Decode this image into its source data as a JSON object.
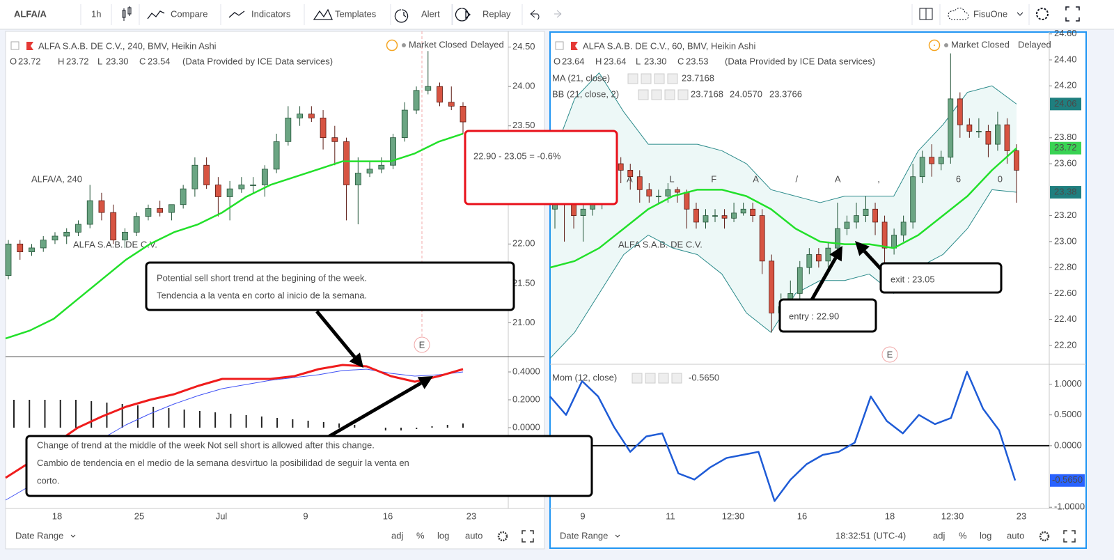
{
  "toolbar": {
    "symbol": "ALFA/A",
    "interval": "1h",
    "items": [
      "Compare",
      "Indicators",
      "Templates",
      "Alert",
      "Replay"
    ],
    "user": "FisuOne"
  },
  "left_panel": {
    "title": "ALFA S.A.B. DE C.V., 240, BMV, Heikin Ashi",
    "ohlc_labels": [
      "O",
      "H",
      "L",
      "C"
    ],
    "ohlc_values": [
      "23.72",
      "23.72",
      "23.30",
      "23.54"
    ],
    "provider": "(Data Provided by ICE Data services)",
    "status": "Market Closed",
    "delay": "Delayed",
    "watermark": "ALFA/A, 240",
    "watermark_sub": "ALFA S.A.B. DE C.V.",
    "event": "E",
    "ylim": [
      20.57,
      24.7
    ],
    "yticks": [
      {
        "value": 21,
        "label": "21.00"
      },
      {
        "value": 21.5,
        "label": "21.50"
      },
      {
        "value": 22,
        "label": "22.00"
      },
      {
        "value": 23.5,
        "label": "23.50"
      },
      {
        "value": 24,
        "label": "24.00"
      },
      {
        "value": 24.5,
        "label": "24.50"
      }
    ],
    "candles": [
      [
        21.6,
        22.05,
        21.55,
        22.0
      ],
      [
        22.0,
        22.05,
        21.8,
        21.9
      ],
      [
        21.9,
        22.0,
        21.85,
        21.95
      ],
      [
        21.95,
        22.1,
        21.9,
        22.05
      ],
      [
        22.05,
        22.15,
        22.0,
        22.1
      ],
      [
        22.1,
        22.2,
        22.0,
        22.15
      ],
      [
        22.15,
        22.3,
        22.1,
        22.25
      ],
      [
        22.25,
        22.75,
        22.2,
        22.55
      ],
      [
        22.55,
        22.65,
        22.3,
        22.4
      ],
      [
        22.4,
        22.5,
        22.0,
        22.05
      ],
      [
        22.05,
        22.2,
        21.95,
        22.15
      ],
      [
        22.15,
        22.4,
        22.1,
        22.35
      ],
      [
        22.35,
        22.5,
        22.3,
        22.45
      ],
      [
        22.45,
        22.55,
        22.35,
        22.4
      ],
      [
        22.4,
        22.5,
        22.3,
        22.5
      ],
      [
        22.5,
        22.75,
        22.45,
        22.7
      ],
      [
        22.7,
        23.1,
        22.6,
        23.0
      ],
      [
        23.0,
        23.1,
        22.7,
        22.75
      ],
      [
        22.75,
        22.85,
        22.35,
        22.6
      ],
      [
        22.6,
        22.8,
        22.3,
        22.7
      ],
      [
        22.7,
        22.85,
        22.65,
        22.75
      ],
      [
        22.75,
        22.85,
        22.65,
        22.75
      ],
      [
        22.75,
        23.0,
        22.6,
        22.95
      ],
      [
        22.95,
        23.4,
        22.9,
        23.3
      ],
      [
        23.3,
        23.75,
        23.25,
        23.6
      ],
      [
        23.6,
        23.75,
        23.5,
        23.65
      ],
      [
        23.65,
        23.75,
        23.55,
        23.6
      ],
      [
        23.6,
        23.7,
        23.2,
        23.35
      ],
      [
        23.35,
        23.5,
        23.0,
        23.3
      ],
      [
        23.3,
        23.35,
        22.3,
        22.75
      ],
      [
        22.75,
        23.1,
        22.25,
        22.9
      ],
      [
        22.9,
        23.05,
        22.85,
        22.95
      ],
      [
        22.95,
        23.1,
        22.9,
        23.0
      ],
      [
        23.0,
        23.4,
        22.95,
        23.35
      ],
      [
        23.35,
        23.8,
        23.3,
        23.7
      ],
      [
        23.7,
        24.0,
        23.65,
        23.95
      ],
      [
        23.95,
        24.45,
        23.9,
        24.0
      ],
      [
        24.0,
        24.05,
        23.75,
        23.8
      ],
      [
        23.8,
        24.0,
        23.7,
        23.75
      ],
      [
        23.75,
        23.8,
        23.4,
        23.55
      ]
    ],
    "ma": [
      20.8,
      20.9,
      21.05,
      21.3,
      21.55,
      21.8,
      22.0,
      22.15,
      22.25,
      22.4,
      22.6,
      22.75,
      22.85,
      22.95,
      23.05,
      23.05,
      23.05,
      23.15,
      23.3,
      23.4
    ],
    "lower": {
      "ylim": [
        -0.58,
        0.51
      ],
      "yticks": [
        {
          "value": 0.4,
          "label": "0.4000"
        },
        {
          "value": 0.2,
          "label": "0.2000"
        },
        {
          "value": 0,
          "label": "0.0000"
        }
      ],
      "macd": [
        -0.36,
        -0.25,
        -0.12,
        0.0,
        0.08,
        0.15,
        0.2,
        0.24,
        0.3,
        0.35,
        0.35,
        0.35,
        0.37,
        0.42,
        0.45,
        0.44,
        0.37,
        0.33,
        0.37,
        0.42
      ],
      "signal": [
        -0.52,
        -0.42,
        -0.3,
        -0.18,
        -0.08,
        0.02,
        0.1,
        0.17,
        0.23,
        0.28,
        0.31,
        0.34,
        0.36,
        0.38,
        0.41,
        0.42,
        0.39,
        0.37,
        0.38,
        0.4
      ],
      "histogram": [
        0.2,
        0.2,
        0.2,
        0.2,
        0.2,
        0.19,
        0.18,
        0.17,
        0.16,
        0.15,
        0.14,
        0.13,
        0.12,
        0.11,
        0.1,
        0.09,
        0.08,
        0.07,
        0.06,
        0.05,
        0.04,
        0.03,
        0.02,
        0.0,
        -0.02,
        -0.02,
        -0.01,
        0.01,
        0.02,
        0.03
      ]
    },
    "xlabels": [
      "18",
      "25",
      "Jul",
      "9",
      "16",
      "23"
    ]
  },
  "right_panel": {
    "title": "ALFA S.A.B. DE C.V., 60, BMV, Heikin Ashi",
    "ohlc_labels": [
      "O",
      "H",
      "L",
      "C"
    ],
    "ohlc_values": [
      "23.64",
      "23.64",
      "23.30",
      "23.53"
    ],
    "provider": "(Data Provided by ICE Data services)",
    "status": "Market Closed",
    "delay": "Delayed",
    "watermark": "ALFA/A, 60",
    "watermark_sub": "ALFA S.A.B. DE C.V.",
    "event": "E",
    "indicators": [
      {
        "name": "MA (21, close)",
        "values": [
          "23.7168"
        ]
      },
      {
        "name": "BB (21, close, 2)",
        "values": [
          "23.7168",
          "24.0570",
          "23.3766"
        ]
      }
    ],
    "ylim": [
      22.06,
      24.62
    ],
    "yticks": [
      {
        "value": 24.6,
        "label": "24.60"
      },
      {
        "value": 24.4,
        "label": "24.40"
      },
      {
        "value": 24.2,
        "label": "24.20"
      },
      {
        "value": 23.8,
        "label": "23.80"
      },
      {
        "value": 23.6,
        "label": "23.60"
      },
      {
        "value": 23.2,
        "label": "23.20"
      },
      {
        "value": 23,
        "label": "23.00"
      },
      {
        "value": 22.8,
        "label": "22.80"
      },
      {
        "value": 22.6,
        "label": "22.60"
      },
      {
        "value": 22.4,
        "label": "22.40"
      },
      {
        "value": 22.2,
        "label": "22.20"
      }
    ],
    "candles": [
      [
        23.25,
        23.45,
        23.1,
        23.35
      ],
      [
        23.35,
        23.4,
        23.0,
        23.3
      ],
      [
        23.3,
        23.35,
        23.1,
        23.2
      ],
      [
        23.2,
        23.3,
        23.0,
        23.25
      ],
      [
        23.25,
        23.4,
        23.2,
        23.3
      ],
      [
        23.3,
        23.5,
        23.25,
        23.45
      ],
      [
        23.45,
        23.65,
        23.4,
        23.6
      ],
      [
        23.6,
        23.65,
        23.45,
        23.55
      ],
      [
        23.55,
        23.6,
        23.4,
        23.5
      ],
      [
        23.5,
        23.55,
        23.3,
        23.4
      ],
      [
        23.4,
        23.45,
        23.3,
        23.35
      ],
      [
        23.35,
        23.4,
        23.3,
        23.35
      ],
      [
        23.35,
        23.45,
        23.3,
        23.4
      ],
      [
        23.4,
        23.42,
        23.3,
        23.38
      ],
      [
        23.38,
        23.4,
        23.1,
        23.25
      ],
      [
        23.25,
        23.3,
        23.1,
        23.15
      ],
      [
        23.15,
        23.25,
        23.1,
        23.2
      ],
      [
        23.2,
        23.25,
        23.15,
        23.2
      ],
      [
        23.2,
        23.25,
        23.1,
        23.18
      ],
      [
        23.18,
        23.3,
        23.15,
        23.22
      ],
      [
        23.22,
        23.3,
        23.2,
        23.25
      ],
      [
        23.25,
        23.3,
        23.15,
        23.2
      ],
      [
        23.2,
        23.25,
        22.75,
        22.85
      ],
      [
        22.85,
        22.9,
        22.3,
        22.45
      ],
      [
        22.45,
        22.6,
        22.3,
        22.5
      ],
      [
        22.5,
        22.7,
        22.45,
        22.6
      ],
      [
        22.6,
        22.85,
        22.55,
        22.8
      ],
      [
        22.8,
        22.95,
        22.75,
        22.9
      ],
      [
        22.9,
        22.95,
        22.8,
        22.85
      ],
      [
        22.85,
        23.0,
        22.8,
        22.95
      ],
      [
        22.95,
        23.3,
        22.9,
        23.1
      ],
      [
        23.1,
        23.2,
        23.05,
        23.15
      ],
      [
        23.15,
        23.3,
        23.1,
        23.2
      ],
      [
        23.2,
        23.35,
        23.15,
        23.25
      ],
      [
        23.25,
        23.3,
        23.05,
        23.15
      ],
      [
        23.15,
        23.2,
        22.7,
        22.95
      ],
      [
        22.95,
        23.1,
        22.9,
        23.05
      ],
      [
        23.05,
        23.2,
        23.0,
        23.15
      ],
      [
        23.15,
        23.6,
        23.1,
        23.5
      ],
      [
        23.5,
        23.7,
        23.45,
        23.65
      ],
      [
        23.65,
        23.75,
        23.5,
        23.6
      ],
      [
        23.6,
        23.7,
        23.55,
        23.65
      ],
      [
        23.65,
        24.45,
        23.6,
        24.1
      ],
      [
        24.1,
        24.15,
        23.8,
        23.9
      ],
      [
        23.9,
        23.95,
        23.8,
        23.85
      ],
      [
        23.85,
        23.95,
        23.8,
        23.85
      ],
      [
        23.85,
        23.9,
        23.65,
        23.75
      ],
      [
        23.75,
        24.0,
        23.7,
        23.9
      ],
      [
        23.9,
        23.95,
        23.6,
        23.7
      ],
      [
        23.7,
        23.75,
        23.3,
        23.55
      ]
    ],
    "ma": [
      22.8,
      22.85,
      22.95,
      23.1,
      23.25,
      23.35,
      23.4,
      23.4,
      23.35,
      23.25,
      23.1,
      23.0,
      22.98,
      22.98,
      22.95,
      23.05,
      23.2,
      23.35,
      23.55,
      23.72
    ],
    "bb_upper": [
      23.6,
      24.1,
      24.3,
      24.0,
      23.75,
      23.75,
      23.75,
      23.7,
      23.6,
      23.4,
      23.35,
      23.3,
      23.35,
      23.35,
      23.35,
      23.7,
      23.9,
      24.15,
      24.2,
      24.06
    ],
    "bb_lower": [
      22.1,
      22.3,
      22.6,
      22.9,
      23.05,
      22.95,
      22.9,
      22.75,
      22.45,
      22.3,
      22.6,
      22.7,
      22.7,
      22.75,
      22.6,
      22.8,
      22.9,
      23.1,
      23.4,
      23.38
    ],
    "price_labels": [
      "24.06",
      "23.72",
      "23.38"
    ],
    "lower": {
      "name": "Mom (12, close)",
      "value": "-0.5650",
      "ylim": [
        -1.02,
        1.3
      ],
      "yticks": [
        {
          "value": 1,
          "label": "1.0000"
        },
        {
          "value": 0.5,
          "label": "0.5000"
        },
        {
          "value": 0,
          "label": "0.0000"
        },
        {
          "value": -1,
          "label": "-1.0000"
        }
      ],
      "values": [
        0.8,
        0.5,
        1.05,
        0.8,
        0.3,
        -0.1,
        0.15,
        0.2,
        -0.45,
        -0.55,
        -0.35,
        -0.2,
        -0.15,
        -0.1,
        -0.9,
        -0.55,
        -0.3,
        -0.15,
        -0.1,
        0.05,
        0.8,
        0.4,
        0.2,
        0.5,
        0.35,
        0.45,
        1.2,
        0.6,
        0.25,
        -0.565
      ]
    },
    "xlabels": [
      "9",
      "11",
      "12:30",
      "16",
      "18",
      "12:30",
      "23"
    ]
  },
  "annotations": {
    "result": "22.90 - 23.05 = -0.6%",
    "sell_note": [
      "Potential sell short trend at the begining of the week.",
      "Tendencia a la venta en corto al inicio de la semana."
    ],
    "change_note": [
      "Change of trend at the middle of the week Not sell short is allowed after this change.",
      "Cambio de tendencia en el medio de la semana desvirtuo la posibilidad de seguir la venta en",
      "corto."
    ],
    "entry": "entry : 22.90",
    "exit": "exit : 23.05"
  },
  "footer": {
    "date_range": "Date Range",
    "options": [
      "adj",
      "%",
      "log",
      "auto"
    ],
    "time": "18:32:51 (UTC-4)"
  }
}
